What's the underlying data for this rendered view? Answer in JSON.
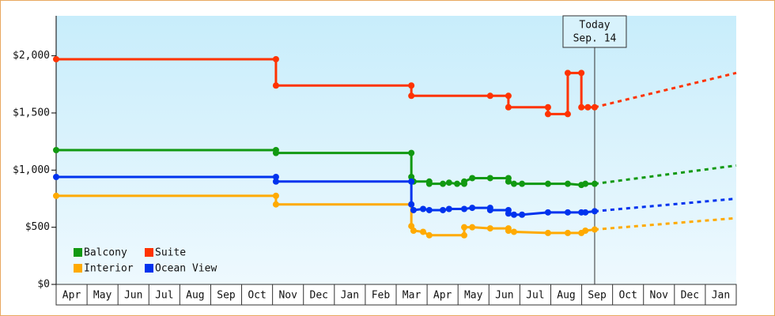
{
  "chart_data": {
    "type": "line",
    "ylim": [
      0,
      2350
    ],
    "yticks": [
      {
        "value": 0,
        "label": "$0"
      },
      {
        "value": 500,
        "label": "$500"
      },
      {
        "value": 1000,
        "label": "$1,000"
      },
      {
        "value": 1500,
        "label": "$1,500"
      },
      {
        "value": 2000,
        "label": "$2,000"
      }
    ],
    "xlim": [
      0,
      22
    ],
    "categories": [
      "Apr",
      "May",
      "Jun",
      "Jul",
      "Aug",
      "Sep",
      "Oct",
      "Nov",
      "Dec",
      "Jan",
      "Feb",
      "Mar",
      "Apr",
      "May",
      "Jun",
      "Jul",
      "Aug",
      "Sep",
      "Oct",
      "Nov",
      "Dec",
      "Jan"
    ],
    "today": {
      "x": 17.42,
      "label": [
        "Today",
        "Sep. 14"
      ]
    },
    "series": [
      {
        "name": "Balcony",
        "color": "#119911",
        "x": [
          0,
          7.11,
          7.11,
          11.49,
          11.49,
          11.56,
          12.07,
          12.07,
          12.51,
          12.71,
          12.97,
          13.2,
          13.2,
          13.46,
          14.04,
          14.63,
          14.63,
          14.81,
          15.07,
          15.91,
          16.55,
          16.99,
          17.12,
          17.42
        ],
        "values": [
          1175,
          1175,
          1150,
          1150,
          940,
          900,
          900,
          880,
          880,
          890,
          880,
          880,
          900,
          930,
          930,
          930,
          900,
          880,
          880,
          880,
          880,
          870,
          880,
          880
        ],
        "forecast": {
          "x": [
            17.42,
            22
          ],
          "values": [
            880,
            1040
          ]
        }
      },
      {
        "name": "Suite",
        "color": "#ff3300",
        "x": [
          0,
          7.11,
          7.11,
          11.49,
          11.49,
          14.04,
          14.63,
          14.63,
          15.91,
          15.91,
          16.55,
          16.55,
          16.99,
          16.99,
          17.2,
          17.42
        ],
        "values": [
          1970,
          1970,
          1740,
          1740,
          1650,
          1650,
          1650,
          1550,
          1550,
          1490,
          1490,
          1850,
          1850,
          1550,
          1550,
          1550
        ],
        "forecast": {
          "x": [
            17.42,
            22
          ],
          "values": [
            1550,
            1850
          ]
        }
      },
      {
        "name": "Interior",
        "color": "#ffaa00",
        "x": [
          0,
          7.11,
          7.11,
          11.49,
          11.49,
          11.56,
          11.87,
          12.07,
          13.2,
          13.2,
          13.46,
          14.04,
          14.63,
          14.63,
          14.81,
          15.91,
          16.55,
          16.99,
          17.12,
          17.42
        ],
        "values": [
          775,
          775,
          700,
          700,
          510,
          470,
          460,
          430,
          430,
          500,
          500,
          490,
          490,
          470,
          460,
          450,
          450,
          450,
          470,
          480
        ],
        "forecast": {
          "x": [
            17.42,
            22
          ],
          "values": [
            480,
            580
          ]
        }
      },
      {
        "name": "Ocean View",
        "color": "#0033ee",
        "x": [
          0,
          7.11,
          7.11,
          11.49,
          11.49,
          11.56,
          11.87,
          12.07,
          12.51,
          12.71,
          13.2,
          13.46,
          14.04,
          14.04,
          14.63,
          14.63,
          14.81,
          15.07,
          15.91,
          16.55,
          16.99,
          17.12,
          17.42
        ],
        "values": [
          940,
          940,
          900,
          900,
          700,
          650,
          660,
          650,
          650,
          660,
          660,
          670,
          670,
          650,
          650,
          620,
          610,
          610,
          630,
          630,
          630,
          630,
          640
        ],
        "forecast": {
          "x": [
            17.42,
            22
          ],
          "values": [
            640,
            750
          ]
        }
      }
    ]
  }
}
